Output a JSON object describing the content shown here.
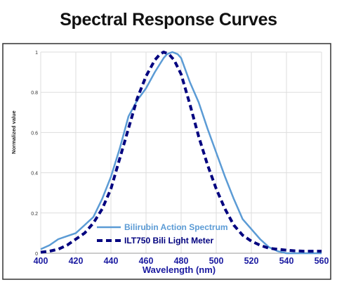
{
  "title": "Spectral Response Curves",
  "colors": {
    "bilirubin": "#5b9bd5",
    "ilt750": "#00007f",
    "axis_text": "#1a1aa0",
    "grid": "#dddddd",
    "frame": "#333333"
  },
  "chart_data": {
    "type": "line",
    "xlabel": "Wavelength (nm)",
    "ylabel": "Normalized value",
    "xlim": [
      400,
      560
    ],
    "ylim": [
      0,
      1
    ],
    "x_ticks": [
      400,
      420,
      440,
      460,
      480,
      500,
      520,
      540,
      560
    ],
    "y_ticks": [
      0,
      0.2,
      0.4,
      0.6,
      0.8,
      1
    ],
    "y_tick_labels": [
      "0",
      "0.2",
      "0.4",
      "0.6",
      "0.8",
      "1"
    ],
    "grid": true,
    "legend_position": "bottom-center",
    "series": [
      {
        "name": "Bilirubin Action Spectrum",
        "style": "solid",
        "x": [
          400,
          405,
          410,
          415,
          420,
          425,
          430,
          435,
          440,
          445,
          450,
          455,
          460,
          465,
          470,
          472,
          475,
          478,
          480,
          485,
          490,
          495,
          500,
          505,
          510,
          515,
          520,
          525,
          530,
          535,
          540,
          545,
          550,
          555,
          560
        ],
        "y": [
          0.02,
          0.04,
          0.07,
          0.085,
          0.1,
          0.14,
          0.18,
          0.27,
          0.38,
          0.52,
          0.68,
          0.76,
          0.82,
          0.9,
          0.97,
          0.99,
          1.0,
          0.99,
          0.97,
          0.85,
          0.75,
          0.62,
          0.5,
          0.38,
          0.27,
          0.17,
          0.12,
          0.07,
          0.03,
          0.01,
          0.0,
          0.0,
          0.0,
          0.0,
          0.0
        ]
      },
      {
        "name": "ILT750 Bili Light Meter",
        "style": "dashed",
        "x": [
          400,
          405,
          410,
          415,
          420,
          425,
          430,
          435,
          440,
          445,
          450,
          455,
          460,
          465,
          468,
          470,
          473,
          476,
          480,
          485,
          490,
          495,
          500,
          505,
          510,
          515,
          520,
          525,
          530,
          535,
          540,
          545,
          550,
          555,
          560
        ],
        "y": [
          0.005,
          0.01,
          0.02,
          0.04,
          0.07,
          0.1,
          0.15,
          0.22,
          0.32,
          0.47,
          0.62,
          0.77,
          0.88,
          0.96,
          0.99,
          1.0,
          0.99,
          0.96,
          0.89,
          0.74,
          0.58,
          0.44,
          0.32,
          0.22,
          0.14,
          0.09,
          0.06,
          0.04,
          0.025,
          0.02,
          0.015,
          0.012,
          0.01,
          0.01,
          0.01
        ]
      }
    ]
  }
}
